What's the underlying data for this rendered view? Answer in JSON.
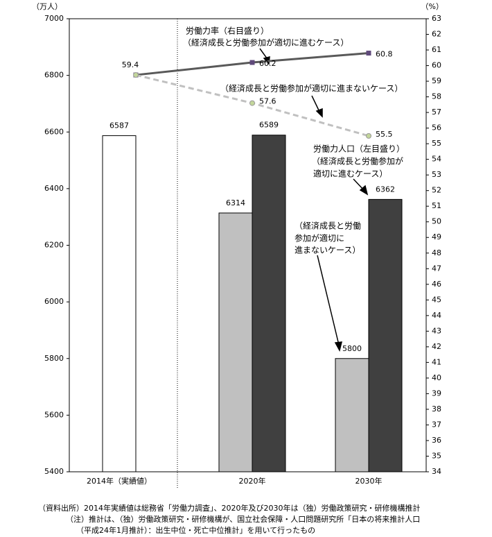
{
  "chart_data": {
    "type": "bar",
    "y_label": "（万人）",
    "y2_label": "（%）",
    "categories": [
      "2014年（実績値）",
      "2020年",
      "2030年"
    ],
    "ylim": [
      5400,
      7000
    ],
    "yticks": [
      5400,
      5600,
      5800,
      6000,
      6200,
      6400,
      6600,
      6800,
      7000
    ],
    "y2lim": [
      34,
      63
    ],
    "y2ticks": [
      34,
      35,
      36,
      37,
      38,
      39,
      40,
      41,
      42,
      43,
      44,
      45,
      46,
      47,
      48,
      49,
      50,
      51,
      52,
      53,
      54,
      55,
      56,
      57,
      58,
      59,
      60,
      61,
      62,
      63
    ],
    "series": [
      {
        "colors": [
          "#ffffff",
          "#c0c0c0",
          "#c0c0c0"
        ],
        "values": [
          6587,
          6314,
          5800
        ]
      },
      {
        "color": "#404040",
        "values": [
          null,
          6589,
          6362
        ]
      },
      {
        "type": "line",
        "axis": "y2",
        "color": "#595959",
        "marker_color": "#604a7b",
        "values": [
          59.4,
          60.2,
          60.8
        ]
      },
      {
        "type": "line",
        "axis": "y2",
        "color": "#c0c0c0",
        "dashed": true,
        "marker_color": "#c3d69b",
        "values": [
          59.4,
          57.6,
          55.5
        ]
      }
    ],
    "annotations": [
      "労働力率（右目盛り）",
      "（経済成長と労働参加が適切に進むケース）",
      "（経済成長と労働参加が適切に進まないケース）",
      "労働力人口（左目盛り）",
      "（経済成長と労働参加が",
      "適切に進むケース）",
      "（経済成長と労働",
      "参加が適切に",
      "進まないケース）"
    ],
    "notes": [
      "（資料出所）2014年実績値は総務省「労働力調査」、2020年及び2030年は（独）労働政策研究・研修機構推計",
      "（注）推計は、（独）労働政策研究・研修機構が、国立社会保障・人口問題研究所「日本の将来推計人口",
      "（平成24年1月推計）：出生中位・死亡中位推計」を用いて行ったもの"
    ]
  }
}
